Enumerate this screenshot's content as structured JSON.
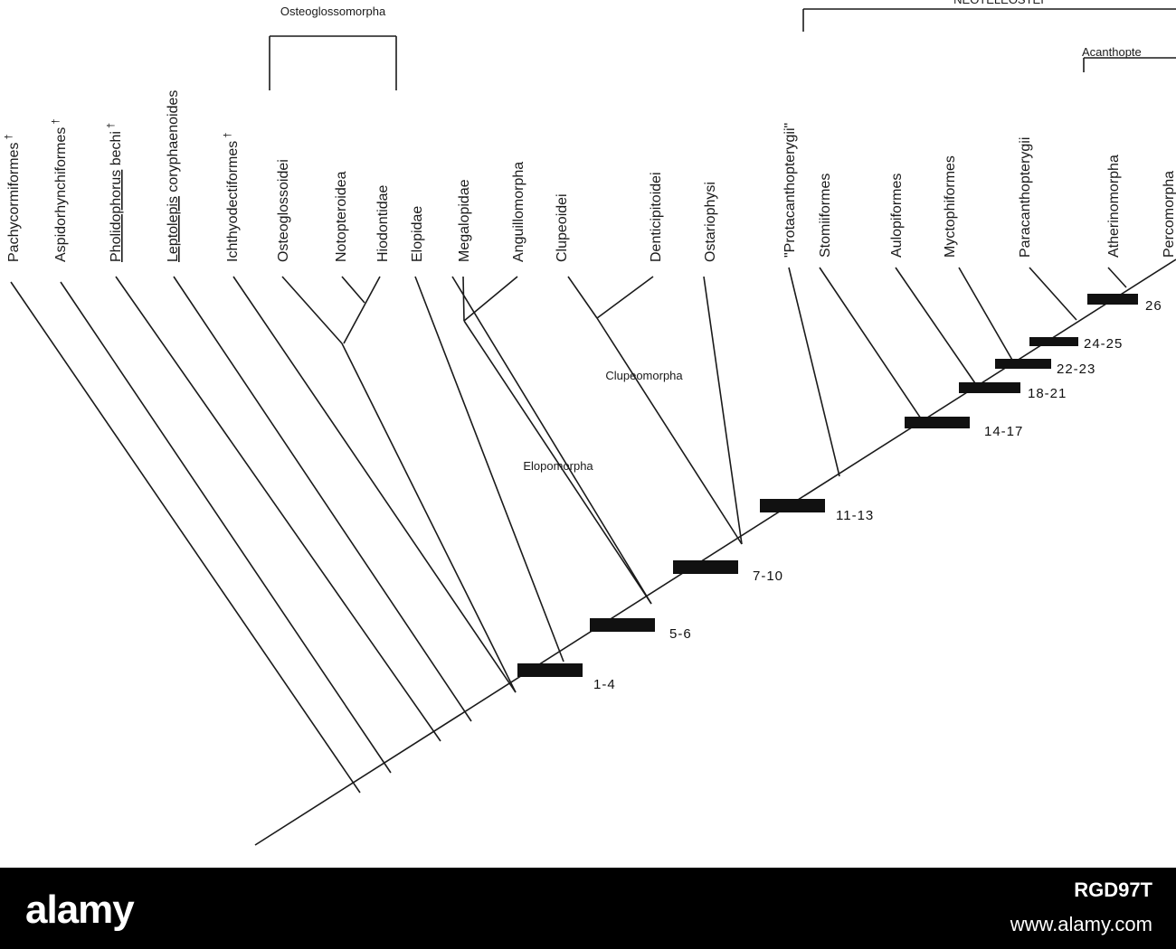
{
  "tree": {
    "taxa": [
      {
        "label": "Pachycormiformes",
        "dagger": "†",
        "underline": false
      },
      {
        "label": "Aspidorhynchiformes",
        "dagger": "†",
        "underline": false
      },
      {
        "label": "Pholidophorus bechi",
        "dagger": "†",
        "underline": true
      },
      {
        "label": "Leptolepis coryphaenoides",
        "dagger": "",
        "underline": true
      },
      {
        "label": "Ichthyodectiformes",
        "dagger": "†",
        "underline": false
      },
      {
        "label": "Osteoglossoidei",
        "dagger": "",
        "underline": false
      },
      {
        "label": "Notopteroidea",
        "dagger": "",
        "underline": false
      },
      {
        "label": "Hiodontidae",
        "dagger": "",
        "underline": false
      },
      {
        "label": "Elopidae",
        "dagger": "",
        "underline": false
      },
      {
        "label": "Megalopidae",
        "dagger": "",
        "underline": false
      },
      {
        "label": "Anguillomorpha",
        "dagger": "",
        "underline": false
      },
      {
        "label": "Clupeoidei",
        "dagger": "",
        "underline": false
      },
      {
        "label": "Denticipitoidei",
        "dagger": "",
        "underline": false
      },
      {
        "label": "Ostariophysi",
        "dagger": "",
        "underline": false
      },
      {
        "label": "\"Protacanthopterygii\"",
        "dagger": "",
        "underline": false
      },
      {
        "label": "Stomiiformes",
        "dagger": "",
        "underline": false
      },
      {
        "label": "Aulopiformes",
        "dagger": "",
        "underline": false
      },
      {
        "label": "Myctophiformes",
        "dagger": "",
        "underline": false
      },
      {
        "label": "Paracanthopterygii",
        "dagger": "",
        "underline": false
      },
      {
        "label": "Atherinomorpha",
        "dagger": "",
        "underline": false
      },
      {
        "label": "Percomorpha",
        "dagger": "",
        "underline": false
      }
    ],
    "groups": [
      {
        "label": "Osteoglossomorpha"
      },
      {
        "label": "Elopomorpha"
      },
      {
        "label": "Clupeomorpha"
      },
      {
        "label": "NEOTELEOSTEI"
      },
      {
        "label": "Acanthopte"
      }
    ],
    "characters": [
      "1-4",
      "5-6",
      "7-10",
      "11-13",
      "14-17",
      "18-21",
      "22-23",
      "24-25",
      "26"
    ]
  },
  "watermark": {
    "logo": "alamy",
    "image_id": "RGD97T",
    "url": "www.alamy.com"
  }
}
